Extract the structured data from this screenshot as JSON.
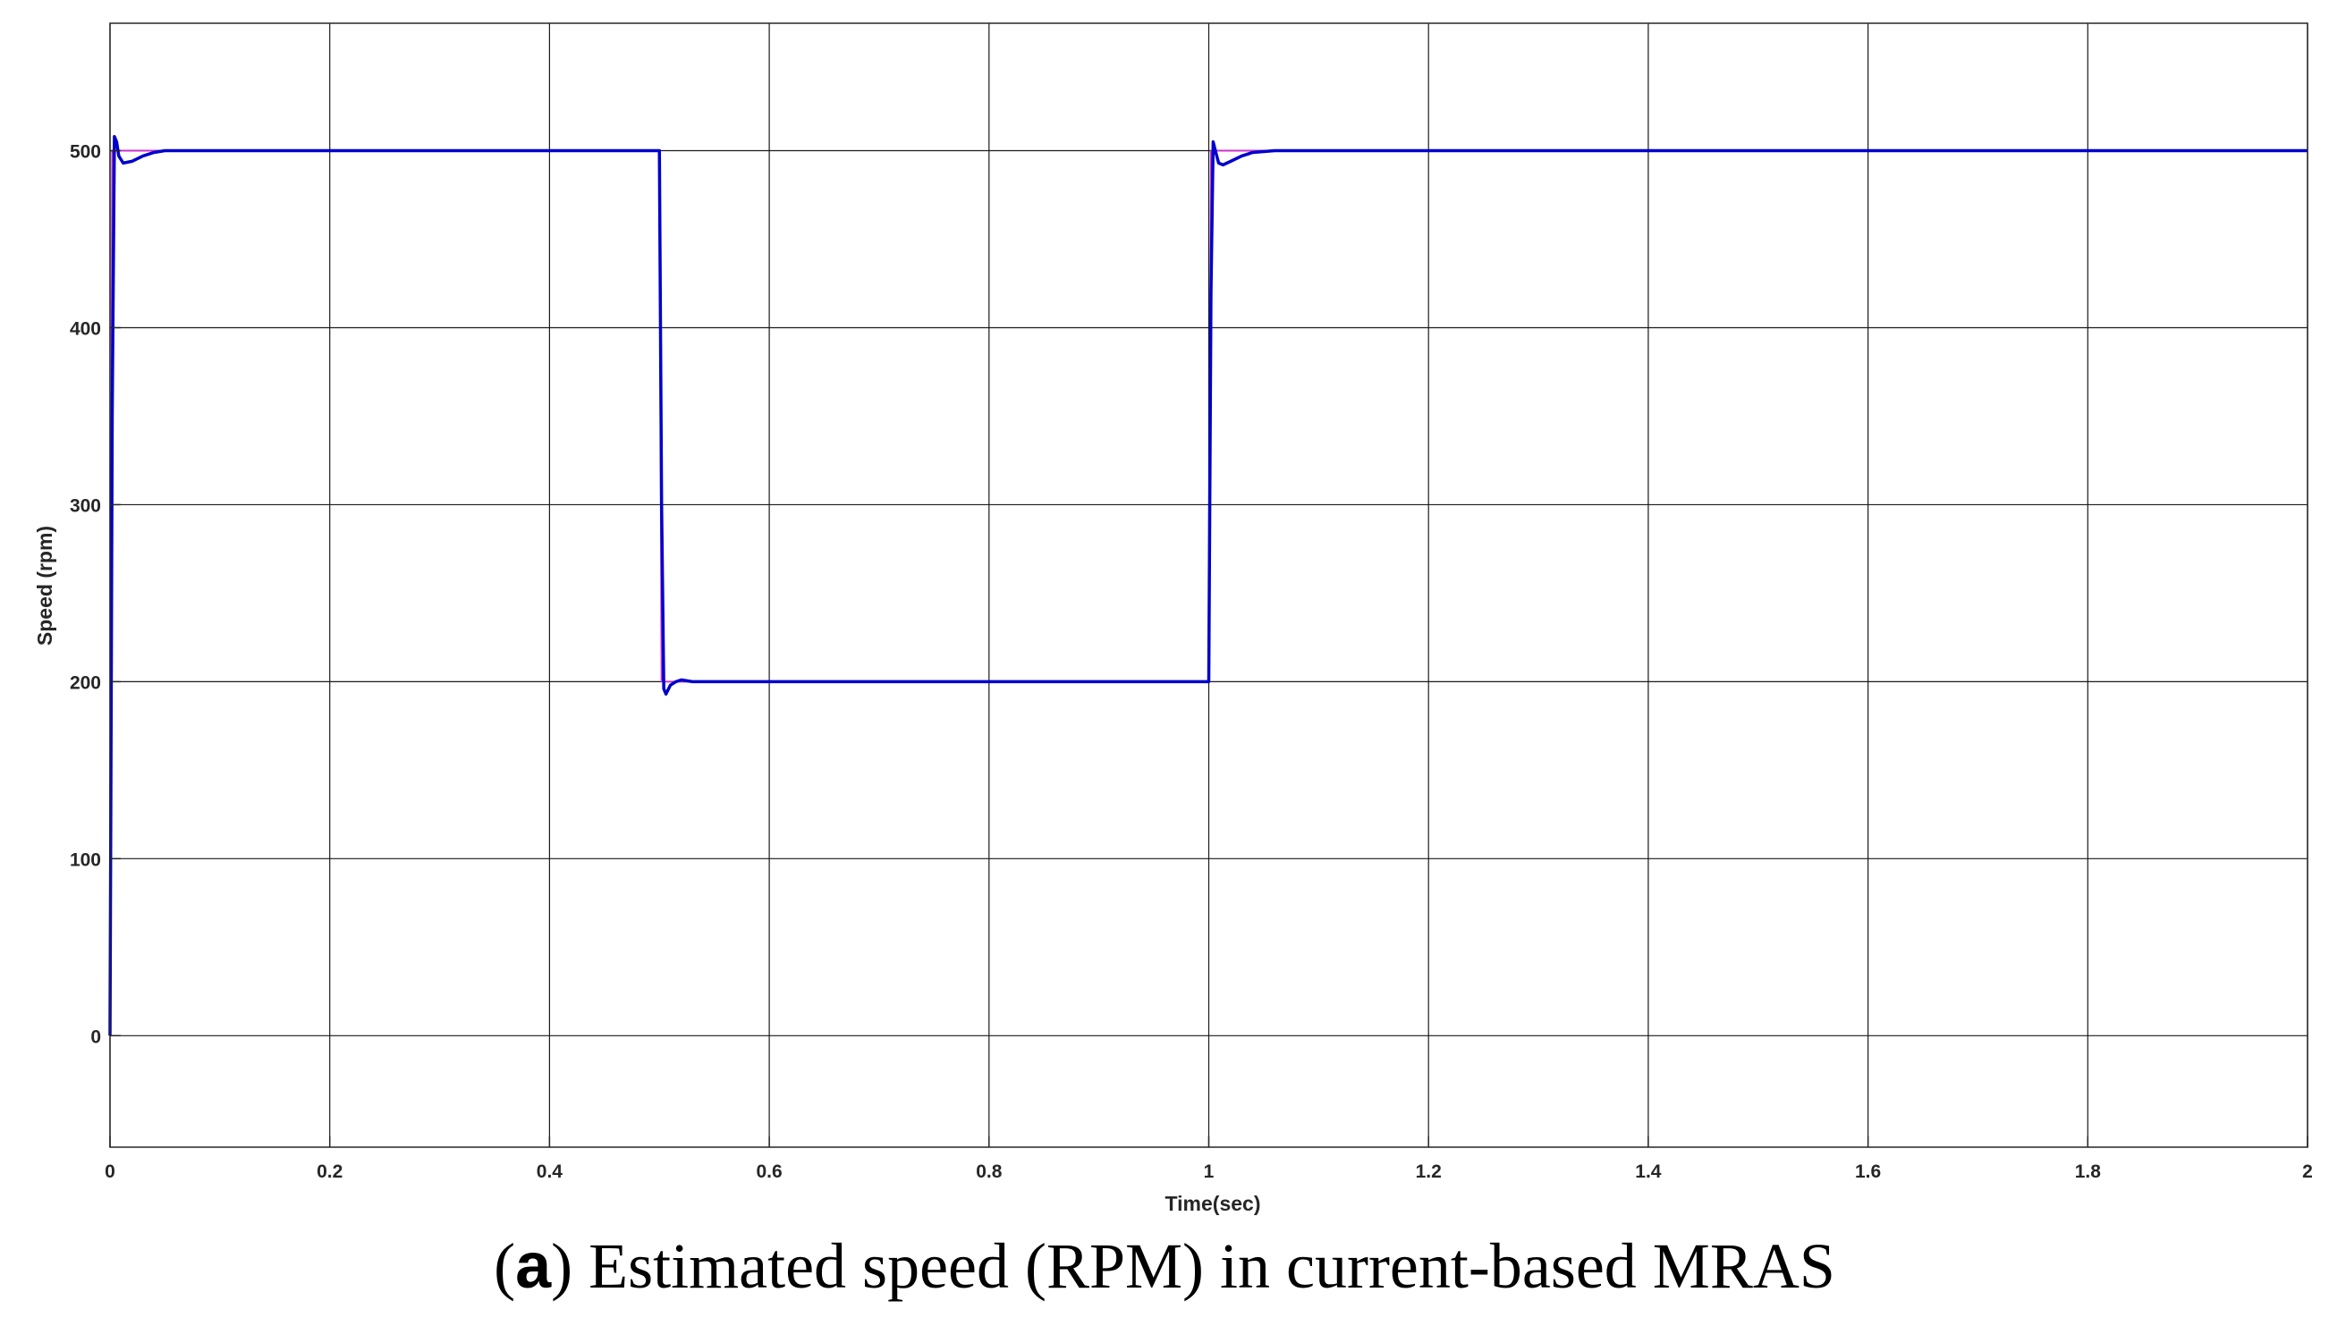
{
  "caption": {
    "open_paren": "(",
    "letter": "a",
    "text": ") Estimated speed (RPM) in current-based MRAS"
  },
  "colors": {
    "estimated": "#0000cc",
    "reference": "#cc33cc",
    "grid": "#1a1a1a",
    "axes": "#262626"
  },
  "chart_data": {
    "type": "line",
    "title": "",
    "xlabel": "Time(sec)",
    "ylabel": "Speed (rpm)",
    "xlim": [
      0,
      2
    ],
    "ylim": [
      -63,
      572
    ],
    "xticks": [
      0,
      0.2,
      0.4,
      0.6,
      0.8,
      1,
      1.2,
      1.4,
      1.6,
      1.8,
      2
    ],
    "xtick_labels": [
      "0",
      "0.2",
      "0.4",
      "0.6",
      "0.8",
      "1",
      "1.2",
      "1.4",
      "1.6",
      "1.8",
      "2"
    ],
    "yticks": [
      0,
      100,
      200,
      300,
      400,
      500
    ],
    "ytick_labels": [
      "0",
      "100",
      "200",
      "300",
      "400",
      "500"
    ],
    "grid": true,
    "legend": "none",
    "series": [
      {
        "role": "reference",
        "color": "#cc33cc",
        "x": [
          0,
          0.002,
          0.5,
          0.502,
          1.0,
          1.002,
          2.0
        ],
        "y": [
          0,
          500,
          500,
          200,
          200,
          500,
          500
        ]
      },
      {
        "role": "estimated",
        "color": "#0000cc",
        "x": [
          0,
          0.002,
          0.004,
          0.006,
          0.008,
          0.012,
          0.02,
          0.03,
          0.04,
          0.05,
          0.07,
          0.1,
          0.5,
          0.502,
          0.504,
          0.506,
          0.51,
          0.515,
          0.52,
          0.53,
          0.55,
          0.6,
          1.0,
          1.002,
          1.004,
          1.006,
          1.009,
          1.013,
          1.02,
          1.03,
          1.04,
          1.06,
          1.1,
          2.0
        ],
        "y": [
          0,
          350,
          508,
          505,
          497,
          493,
          494,
          497,
          499,
          500,
          500,
          500,
          500,
          300,
          196,
          193,
          198,
          200,
          201,
          200,
          200,
          200,
          200,
          420,
          505,
          500,
          493,
          492,
          494,
          497,
          499,
          500,
          500,
          500
        ]
      }
    ]
  }
}
